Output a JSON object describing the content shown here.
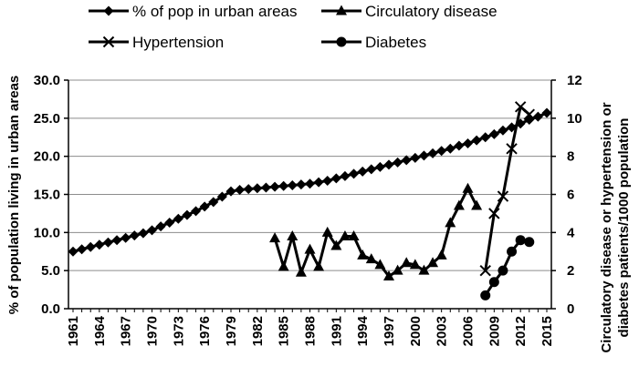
{
  "chart_data": {
    "type": "line",
    "title": "",
    "xlabel": "",
    "ylabel_left": "% of population living in urban areas",
    "ylabel_right": "Circulatory disease or hypertension or diabetes patients/1000 population",
    "ylim_left": [
      0,
      30
    ],
    "ylim_right": [
      0,
      12
    ],
    "yticks_left": [
      "0.0",
      "5.0",
      "10.0",
      "15.0",
      "20.0",
      "25.0",
      "30.0"
    ],
    "yticks_right": [
      "0",
      "2",
      "4",
      "6",
      "8",
      "10",
      "12"
    ],
    "xlim": [
      1961,
      2015
    ],
    "xticks": [
      1961,
      1964,
      1967,
      1970,
      1973,
      1976,
      1979,
      1982,
      1985,
      1988,
      1991,
      1994,
      1997,
      2000,
      2003,
      2006,
      2009,
      2012,
      2015
    ],
    "grid": "horizontal",
    "legend_position": "top",
    "series": [
      {
        "name": "% of pop in urban areas",
        "axis": "left",
        "marker": "diamond",
        "x": [
          1961,
          1962,
          1963,
          1964,
          1965,
          1966,
          1967,
          1968,
          1969,
          1970,
          1971,
          1972,
          1973,
          1974,
          1975,
          1976,
          1977,
          1978,
          1979,
          1980,
          1981,
          1982,
          1983,
          1984,
          1985,
          1986,
          1987,
          1988,
          1989,
          1990,
          1991,
          1992,
          1993,
          1994,
          1995,
          1996,
          1997,
          1998,
          1999,
          2000,
          2001,
          2002,
          2003,
          2004,
          2005,
          2006,
          2007,
          2008,
          2009,
          2010,
          2011,
          2012,
          2013,
          2014,
          2015
        ],
        "values": [
          7.5,
          7.8,
          8.1,
          8.4,
          8.7,
          9.0,
          9.3,
          9.6,
          9.9,
          10.3,
          10.8,
          11.3,
          11.8,
          12.3,
          12.8,
          13.4,
          14.0,
          14.7,
          15.4,
          15.6,
          15.7,
          15.8,
          15.9,
          16.0,
          16.1,
          16.2,
          16.3,
          16.4,
          16.6,
          16.8,
          17.1,
          17.4,
          17.7,
          18.0,
          18.3,
          18.6,
          18.9,
          19.2,
          19.5,
          19.8,
          20.1,
          20.4,
          20.7,
          21.0,
          21.4,
          21.7,
          22.1,
          22.5,
          22.9,
          23.4,
          23.8,
          24.3,
          24.8,
          25.2,
          25.7
        ]
      },
      {
        "name": "Circulatory disease",
        "axis": "right",
        "marker": "triangle",
        "x": [
          1984,
          1985,
          1986,
          1987,
          1988,
          1989,
          1990,
          1991,
          1992,
          1993,
          1994,
          1995,
          1996,
          1997,
          1998,
          1999,
          2000,
          2001,
          2002,
          2003,
          2004,
          2005,
          2006,
          2007
        ],
        "values": [
          3.7,
          2.2,
          3.8,
          1.9,
          3.1,
          2.2,
          4.0,
          3.3,
          3.8,
          3.8,
          2.8,
          2.6,
          2.3,
          1.7,
          2.0,
          2.4,
          2.3,
          2.0,
          2.4,
          2.8,
          4.5,
          5.4,
          6.3,
          5.4
        ]
      },
      {
        "name": "Hypertension",
        "axis": "right",
        "marker": "x",
        "x": [
          2008,
          2009,
          2010,
          2011,
          2012,
          2013
        ],
        "values": [
          2.0,
          5.0,
          5.9,
          8.4,
          10.6,
          10.2
        ]
      },
      {
        "name": "Diabetes",
        "axis": "right",
        "marker": "circle",
        "x": [
          2008,
          2009,
          2010,
          2011,
          2012,
          2013
        ],
        "values": [
          0.7,
          1.4,
          2.0,
          3.0,
          3.6,
          3.5
        ]
      }
    ]
  }
}
